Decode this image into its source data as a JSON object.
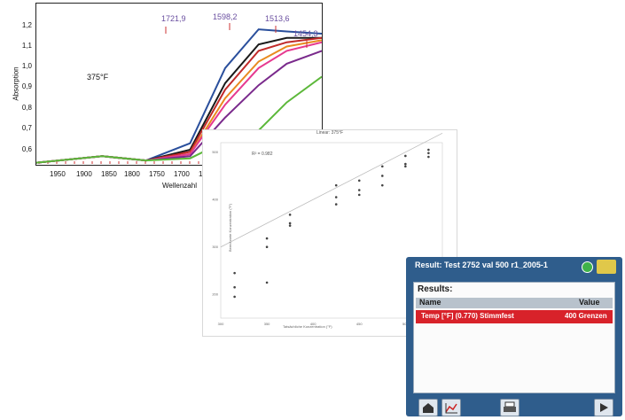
{
  "chart_data": [
    {
      "type": "line",
      "title": "",
      "annotation": "375°F",
      "xlabel": "Wellenzahl",
      "ylabel": "Absorption",
      "xlim": [
        1975,
        1650
      ],
      "ylim": [
        0.55,
        1.3
      ],
      "x_ticks": [
        "1950",
        "1900",
        "1850",
        "1800",
        "1750",
        "1700",
        "1"
      ],
      "y_ticks": [
        "1,2",
        "1,1",
        "1,0",
        "0,9",
        "0,8",
        "0,7",
        "0,6"
      ],
      "peak_labels": [
        "1721,9",
        "1598,2",
        "1513,6",
        "1454,3"
      ],
      "series": [
        {
          "color": "#2a4f9c",
          "x": [
            1975,
            1900,
            1850,
            1800,
            1760,
            1722,
            1690,
            1650
          ],
          "y": [
            0.56,
            0.59,
            0.57,
            0.65,
            1.0,
            1.18,
            1.17,
            1.16
          ]
        },
        {
          "color": "#1a1a1a",
          "x": [
            1975,
            1900,
            1850,
            1800,
            1760,
            1722,
            1690,
            1650
          ],
          "y": [
            0.56,
            0.59,
            0.57,
            0.62,
            0.93,
            1.11,
            1.14,
            1.14
          ]
        },
        {
          "color": "#c12a2a",
          "x": [
            1975,
            1900,
            1850,
            1800,
            1760,
            1722,
            1690,
            1650
          ],
          "y": [
            0.56,
            0.59,
            0.57,
            0.61,
            0.9,
            1.08,
            1.12,
            1.14
          ]
        },
        {
          "color": "#e98a1f",
          "x": [
            1975,
            1900,
            1850,
            1800,
            1760,
            1722,
            1690,
            1650
          ],
          "y": [
            0.56,
            0.59,
            0.57,
            0.6,
            0.86,
            1.03,
            1.1,
            1.13
          ]
        },
        {
          "color": "#e6398f",
          "x": [
            1975,
            1900,
            1850,
            1800,
            1760,
            1722,
            1690,
            1650
          ],
          "y": [
            0.56,
            0.59,
            0.57,
            0.6,
            0.83,
            1.0,
            1.08,
            1.12
          ]
        },
        {
          "color": "#7a2a8c",
          "x": [
            1975,
            1900,
            1850,
            1800,
            1760,
            1722,
            1690,
            1650
          ],
          "y": [
            0.56,
            0.59,
            0.57,
            0.59,
            0.77,
            0.92,
            1.02,
            1.08
          ]
        },
        {
          "color": "#5cb83a",
          "x": [
            1975,
            1900,
            1850,
            1800,
            1760,
            1722,
            1690,
            1650
          ],
          "y": [
            0.56,
            0.59,
            0.57,
            0.58,
            0.66,
            0.71,
            0.84,
            0.96
          ]
        }
      ]
    },
    {
      "type": "scatter",
      "title": "Linear: 375°F",
      "annotation": "R² = 0.982",
      "xlabel": "Tatsächliche Konzentration (°F)",
      "ylabel": "Berechnete Konzentration (°F)",
      "xlim": [
        300,
        540
      ],
      "ylim": [
        150,
        520
      ],
      "x_ticks": [
        "300",
        "350",
        "400",
        "450",
        "500"
      ],
      "y_ticks": [
        "200",
        "300",
        "400",
        "500"
      ],
      "x": [
        315,
        315,
        315,
        350,
        350,
        350,
        375,
        375,
        375,
        425,
        425,
        425,
        450,
        450,
        450,
        475,
        475,
        475,
        500,
        500,
        500,
        525,
        525,
        525
      ],
      "y": [
        195,
        215,
        245,
        225,
        300,
        318,
        345,
        350,
        368,
        390,
        405,
        430,
        410,
        420,
        440,
        430,
        450,
        470,
        470,
        475,
        492,
        490,
        498,
        505
      ]
    }
  ],
  "device": {
    "title": "Result: Test 2752 val 500 r1_2005-1",
    "heading": "Results:",
    "col_name": "Name",
    "col_value": "Value",
    "row_name": "Temp [°F] (0.770) Stimmfest",
    "row_value": "400 Grenzen",
    "status_color": "#3fb24a"
  }
}
